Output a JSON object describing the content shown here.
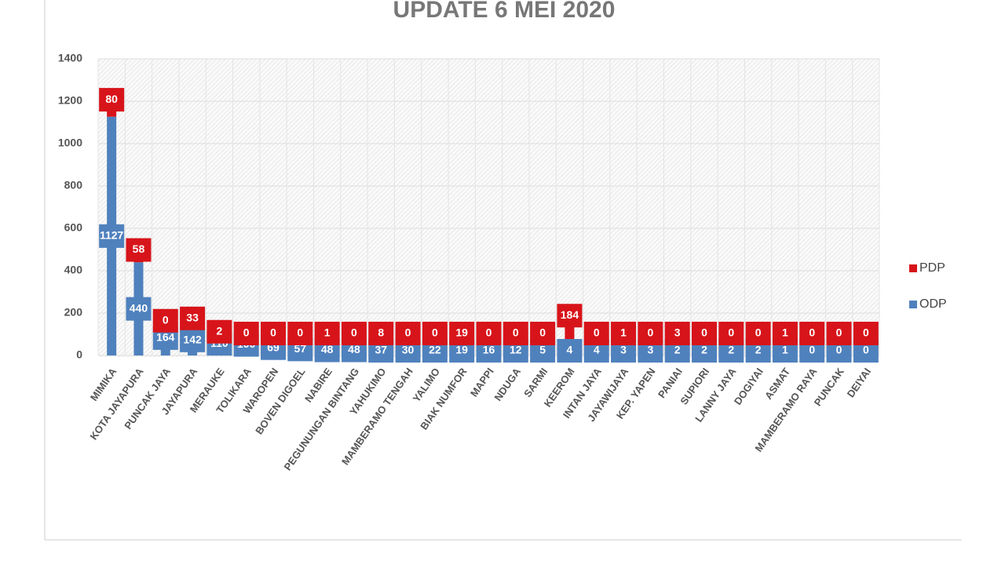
{
  "chart_data": {
    "type": "stacked-bar",
    "title": "UPDATE 6 MEI 2020",
    "categories": [
      "MIMIKA",
      "KOTA JAYAPURA",
      "PUNCAK JAYA",
      "JAYAPURA",
      "MERAUKE",
      "TOLIKARA",
      "WAROPEN",
      "BOVEN DIGOEL",
      "NABIRE",
      "PEGUNUNGAN BINTANG",
      "YAHUKIMO",
      "MAMBERAMO TENGAH",
      "YALIMO",
      "BIAK NUMFOR",
      "MAPPI",
      "NDUGA",
      "SARMI",
      "KEEROM",
      "INTAN JAYA",
      "JAYAWIJAYA",
      "KEP. YAPEN",
      "PANIAI",
      "SUPIORI",
      "LANNY JAYA",
      "DOGIYAI",
      "ASMAT",
      "MAMBERAMO RAYA",
      "PUNCAK",
      "DEIYAI"
    ],
    "series": [
      {
        "name": "ODP",
        "color": "#4f81bd",
        "values": [
          1127,
          440,
          164,
          142,
          110,
          100,
          69,
          57,
          48,
          48,
          37,
          30,
          22,
          19,
          16,
          12,
          5,
          4,
          4,
          3,
          3,
          2,
          2,
          2,
          2,
          1,
          0,
          0,
          0
        ]
      },
      {
        "name": "PDP",
        "color": "#d7141a",
        "values": [
          80,
          58,
          0,
          33,
          2,
          0,
          0,
          0,
          1,
          0,
          8,
          0,
          0,
          19,
          0,
          0,
          0,
          184,
          0,
          1,
          0,
          3,
          0,
          0,
          0,
          1,
          0,
          0,
          0
        ]
      }
    ],
    "ylim": [
      0,
      1400
    ],
    "yticks": [
      0,
      200,
      400,
      600,
      800,
      1000,
      1200,
      1400
    ],
    "grid": true,
    "legend": "right"
  }
}
